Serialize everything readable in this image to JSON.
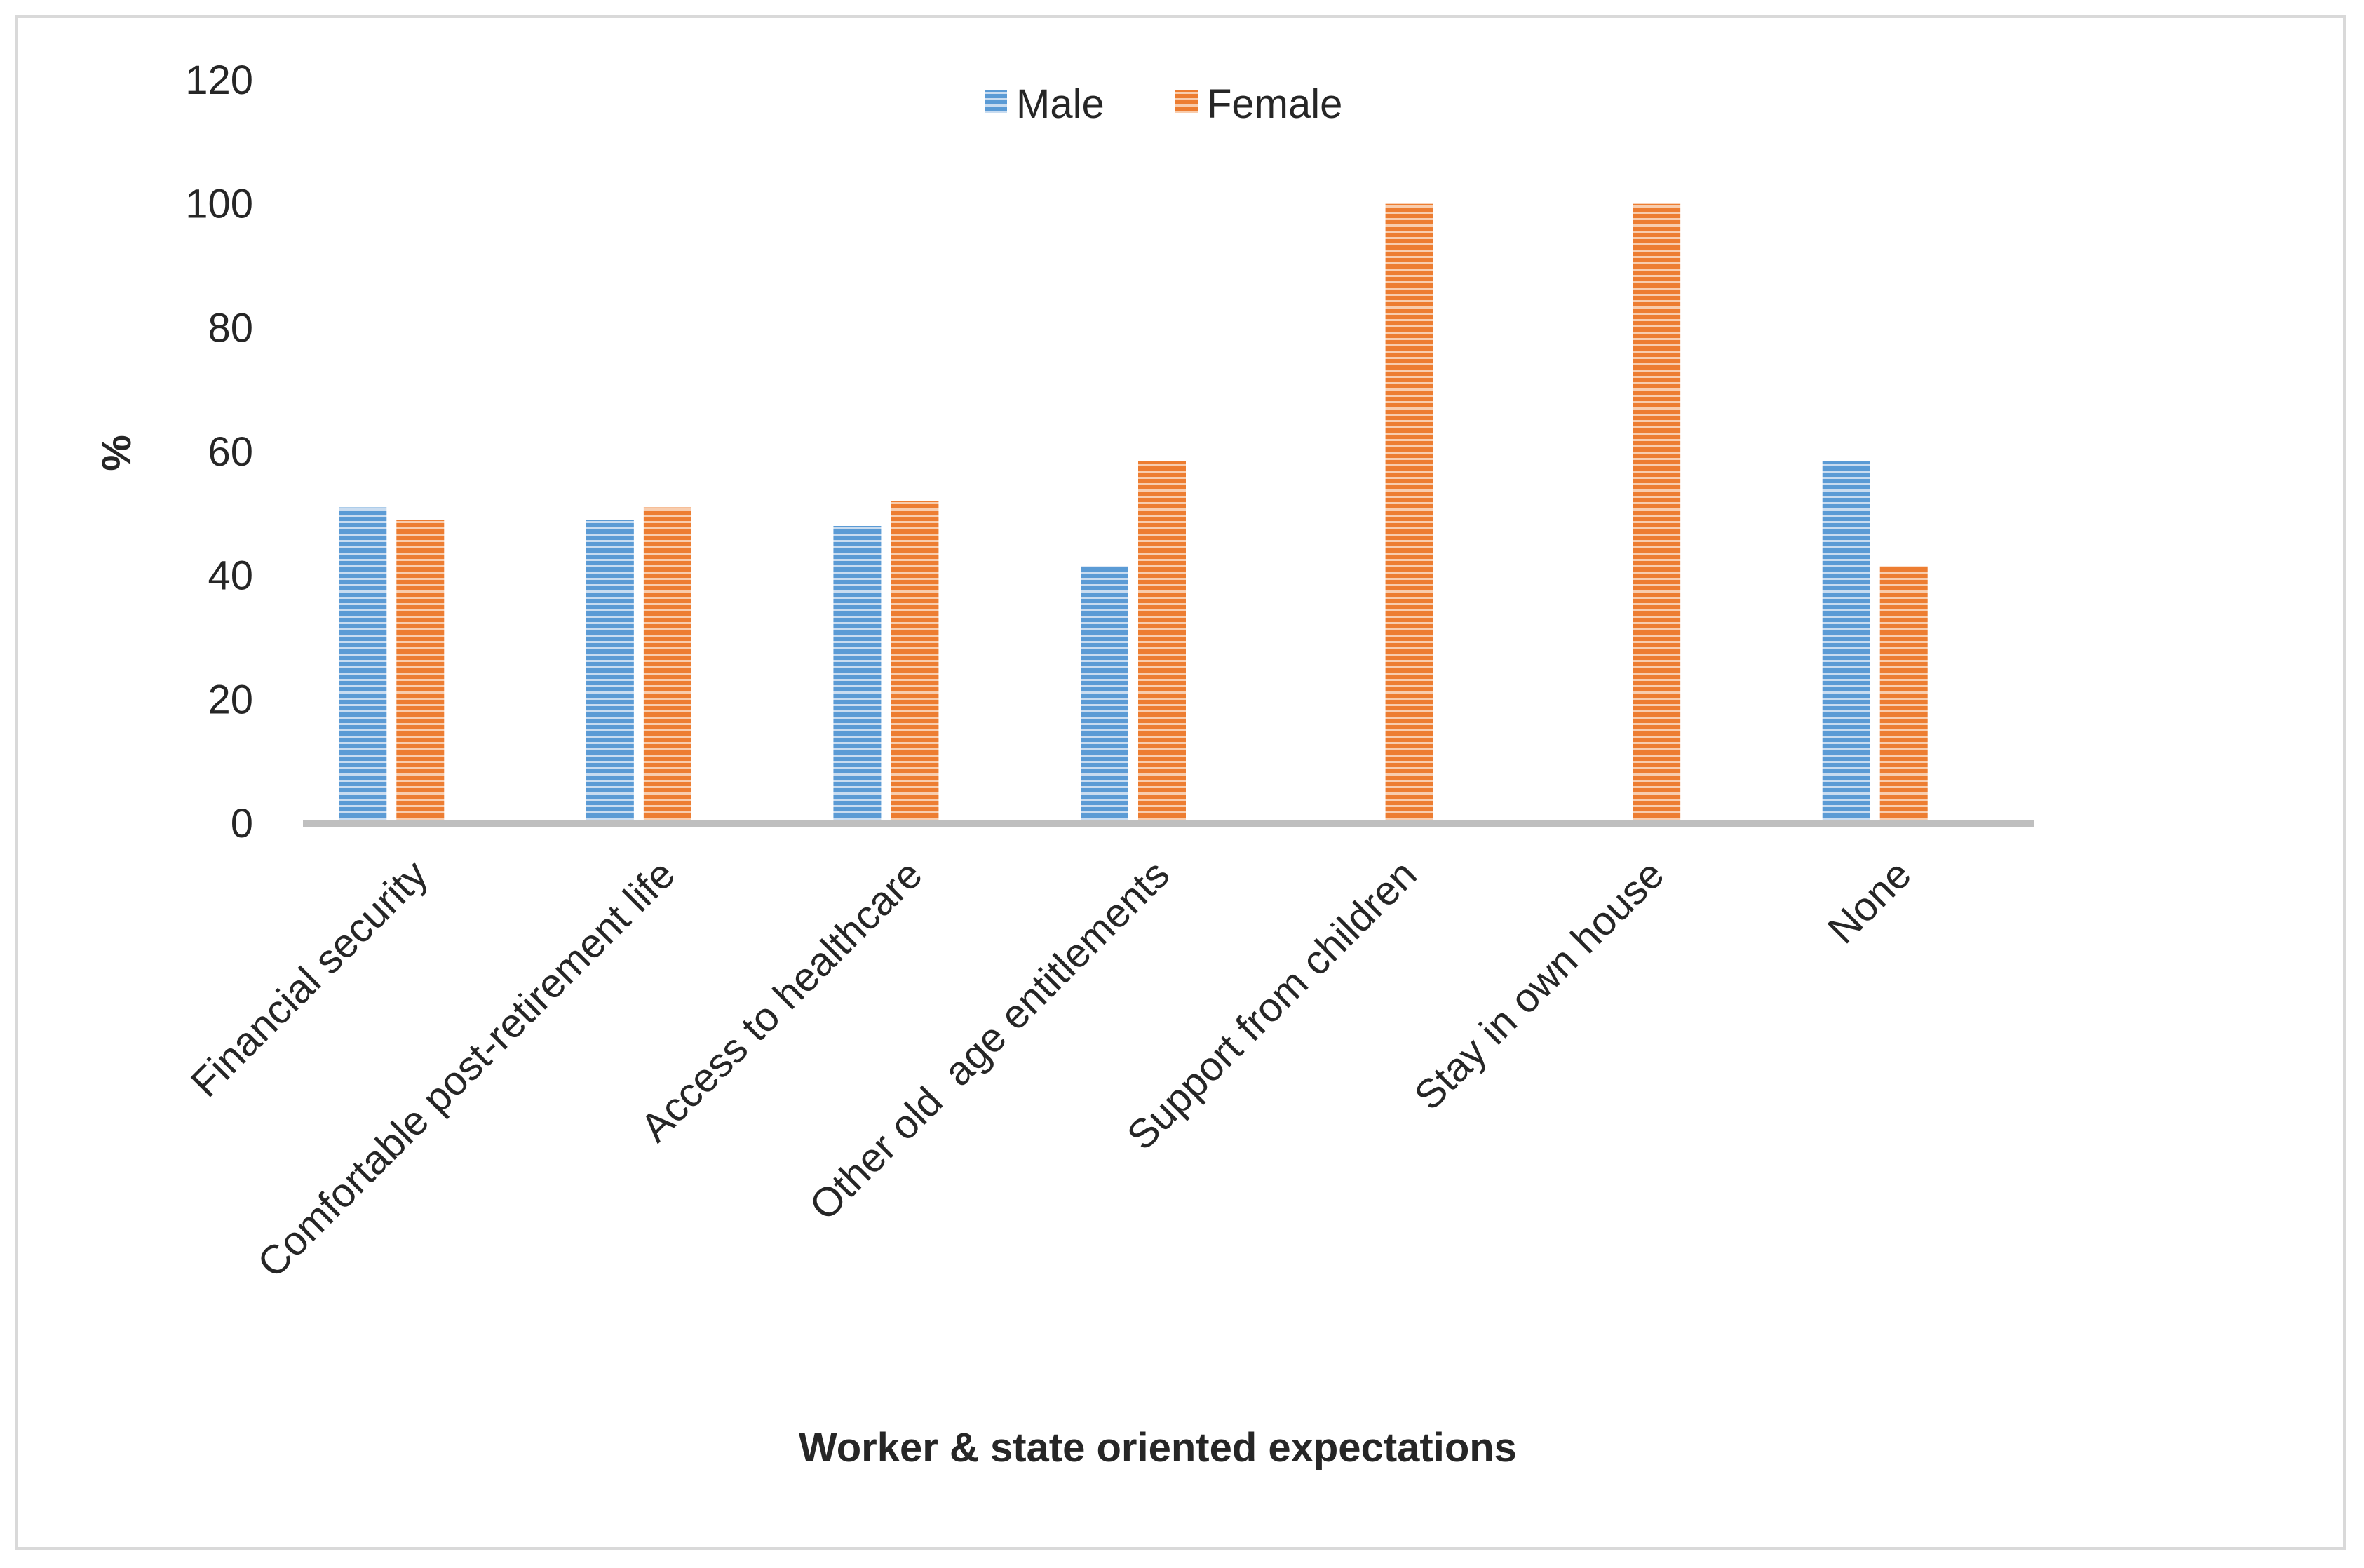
{
  "chart_data": {
    "type": "bar",
    "title": "",
    "xlabel": "Worker & state oriented expectations",
    "ylabel": "%",
    "ylim": [
      0,
      120
    ],
    "yticks": [
      0,
      20,
      40,
      60,
      80,
      100,
      120
    ],
    "grid": false,
    "legend_position": "top",
    "categories": [
      "Financial security",
      "Comfortable post-retirement life",
      "Access to healthcare",
      "Other old  age entitlements",
      "Support from children",
      "Stay in own house",
      "None"
    ],
    "series": [
      {
        "name": "Male",
        "color": "#5b9bd5",
        "values": [
          51,
          49,
          48,
          41.5,
          0,
          0,
          58.5
        ]
      },
      {
        "name": "Female",
        "color": "#ed7d31",
        "values": [
          49,
          51,
          52,
          58.5,
          100,
          100,
          41.5
        ]
      }
    ]
  }
}
